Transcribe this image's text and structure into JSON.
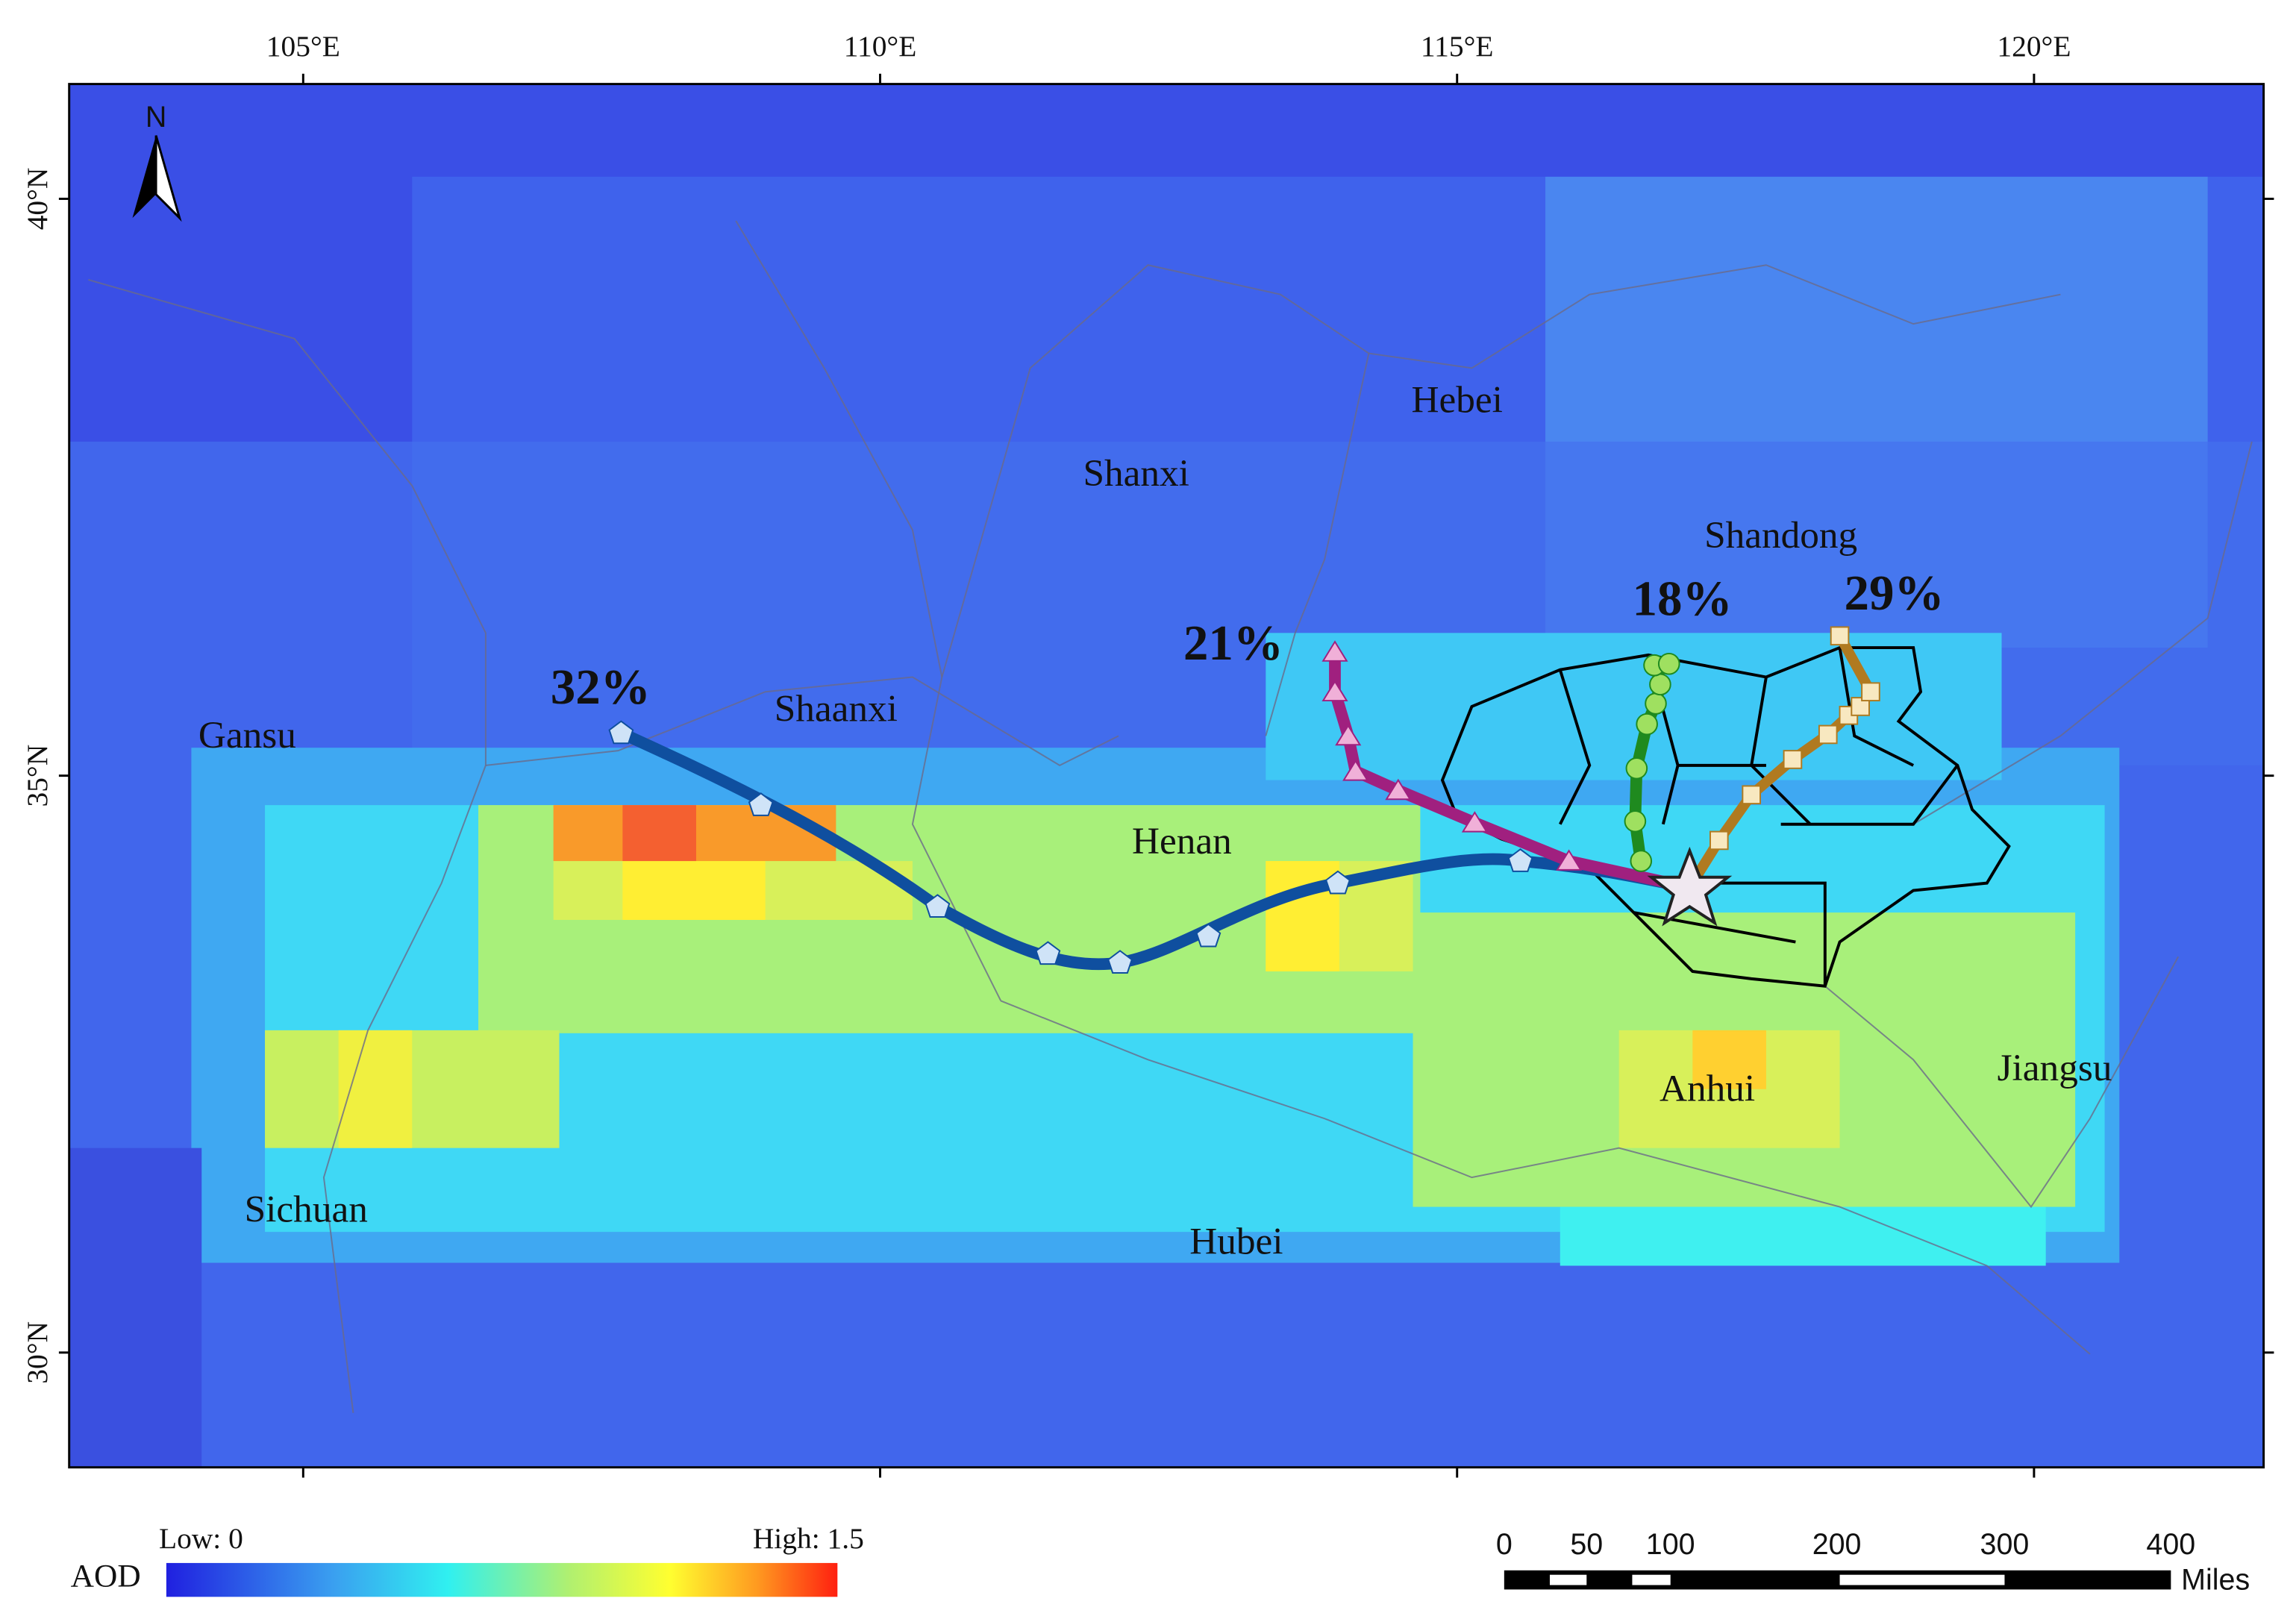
{
  "map": {
    "north": "N",
    "lon_labels": [
      "105°E",
      "110°E",
      "115°E",
      "120°E"
    ],
    "lat_labels": [
      "40°N",
      "35°N",
      "30°N"
    ],
    "regions": [
      "Hebei",
      "Shanxi",
      "Shandong",
      "Gansu",
      "Shaanxi",
      "Henan",
      "Anhui",
      "Jiangsu",
      "Sichuan",
      "Hubei"
    ],
    "trajectories": [
      "32%",
      "21%",
      "18%",
      "29%"
    ],
    "legend": {
      "title": "AOD",
      "low": "Low: 0",
      "high": "High: 1.5"
    },
    "scale_bar": {
      "ticks": [
        "0",
        "50",
        "100",
        "200",
        "300",
        "400"
      ],
      "unit": "Miles"
    }
  }
}
